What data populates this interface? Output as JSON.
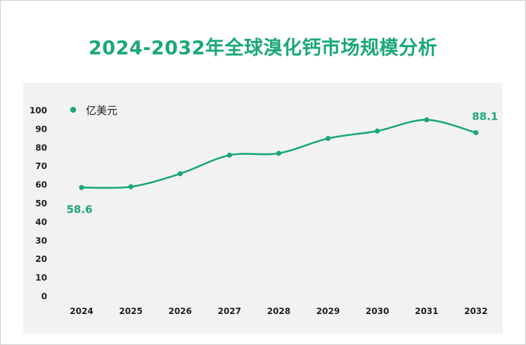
{
  "chart_data": {
    "type": "line",
    "title": "2024-2032年全球溴化钙市场规模分析",
    "legend": "亿美元",
    "legend_position": "top-left",
    "series_color": "#1aa874",
    "categories": [
      "2024",
      "2025",
      "2026",
      "2027",
      "2028",
      "2029",
      "2030",
      "2031",
      "2032"
    ],
    "values": [
      58.6,
      59,
      66,
      76,
      77,
      85,
      89,
      95,
      88.1
    ],
    "data_labels": [
      {
        "index": 0,
        "text": "58.6"
      },
      {
        "index": 8,
        "text": "88.1"
      }
    ],
    "yticks": [
      "0",
      "10",
      "20",
      "30",
      "40",
      "50",
      "60",
      "70",
      "80",
      "90",
      "100"
    ],
    "ylim": [
      0,
      100
    ],
    "xlabel": "",
    "ylabel": ""
  }
}
